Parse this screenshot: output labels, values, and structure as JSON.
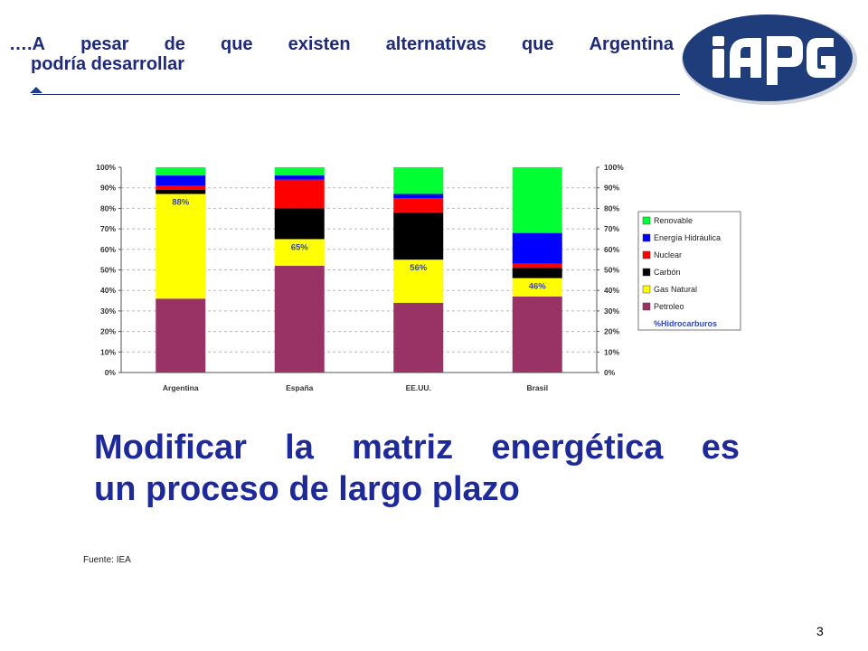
{
  "slide": {
    "title_line1_words": [
      "….A",
      "pesar",
      "de",
      "que",
      "existen",
      "alternativas",
      "que",
      "Argentina"
    ],
    "title_line2": "podría desarrollar",
    "message_line1_words": [
      "Modificar",
      "la",
      "matriz",
      "energética",
      "es"
    ],
    "message_line2": "un proceso de largo plazo",
    "source": "Fuente: IEA",
    "page_number": "3"
  },
  "logo": {
    "icon": "iapg-logo-icon",
    "text": "IAPG",
    "fill": "#1f3d7a"
  },
  "colors": {
    "title": "#1f2a7a",
    "message": "#1f2a9a",
    "Renovable": "#00ff33",
    "Energía Hidráulica": "#0000ff",
    "Nuclear": "#ff0000",
    "Carbón": "#000000",
    "Gas Natural": "#ffff00",
    "Petroleo": "#993366",
    "pct_label": "#3344bb"
  },
  "chart_data": {
    "type": "bar",
    "stacked": true,
    "categories": [
      "Argentina",
      "España",
      "EE.UU.",
      "Brasil"
    ],
    "series": [
      {
        "name": "Petroleo",
        "values": [
          36,
          52,
          34,
          37
        ]
      },
      {
        "name": "Gas Natural",
        "values": [
          51,
          13,
          21,
          9
        ]
      },
      {
        "name": "Carbón",
        "values": [
          2,
          15,
          23,
          5
        ]
      },
      {
        "name": "Nuclear",
        "values": [
          2,
          14,
          7,
          2
        ]
      },
      {
        "name": "Energía Hidráulica",
        "values": [
          5,
          2,
          2,
          15
        ]
      },
      {
        "name": "Renovable",
        "values": [
          4,
          4,
          13,
          32
        ]
      }
    ],
    "hydrocarbon_labels": [
      "88%",
      "65%",
      "56%",
      "46%"
    ],
    "hydrocarbon_legend": "%Hidrocarburos",
    "yticks": [
      "0%",
      "10%",
      "20%",
      "30%",
      "40%",
      "50%",
      "60%",
      "70%",
      "80%",
      "90%",
      "100%"
    ],
    "ylim": [
      0,
      100
    ],
    "secondary_y_axis": true,
    "grid": true,
    "legend_position": "right"
  }
}
